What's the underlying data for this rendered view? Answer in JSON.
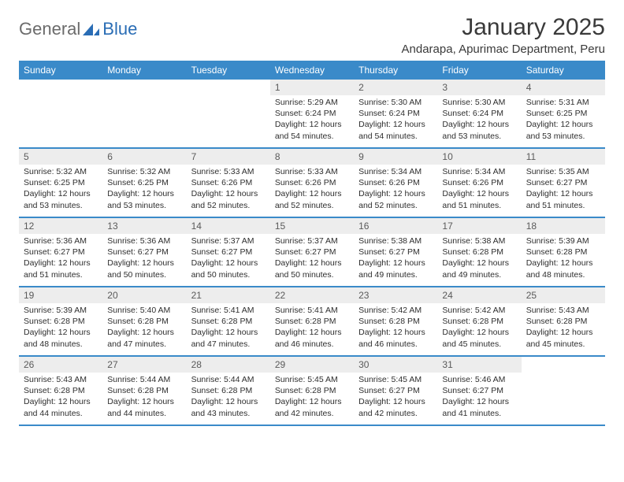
{
  "logo": {
    "general": "General",
    "blue": "Blue"
  },
  "title": "January 2025",
  "location": "Andarapa, Apurimac Department, Peru",
  "colors": {
    "header_bg": "#3a8ac9",
    "header_text": "#ffffff",
    "daynum_bg": "#ededed",
    "rule": "#3a8ac9"
  },
  "day_headers": [
    "Sunday",
    "Monday",
    "Tuesday",
    "Wednesday",
    "Thursday",
    "Friday",
    "Saturday"
  ],
  "weeks": [
    [
      {
        "n": "",
        "sr": "",
        "ss": "",
        "dl": ""
      },
      {
        "n": "",
        "sr": "",
        "ss": "",
        "dl": ""
      },
      {
        "n": "",
        "sr": "",
        "ss": "",
        "dl": ""
      },
      {
        "n": "1",
        "sr": "5:29 AM",
        "ss": "6:24 PM",
        "dl": "12 hours and 54 minutes."
      },
      {
        "n": "2",
        "sr": "5:30 AM",
        "ss": "6:24 PM",
        "dl": "12 hours and 54 minutes."
      },
      {
        "n": "3",
        "sr": "5:30 AM",
        "ss": "6:24 PM",
        "dl": "12 hours and 53 minutes."
      },
      {
        "n": "4",
        "sr": "5:31 AM",
        "ss": "6:25 PM",
        "dl": "12 hours and 53 minutes."
      }
    ],
    [
      {
        "n": "5",
        "sr": "5:32 AM",
        "ss": "6:25 PM",
        "dl": "12 hours and 53 minutes."
      },
      {
        "n": "6",
        "sr": "5:32 AM",
        "ss": "6:25 PM",
        "dl": "12 hours and 53 minutes."
      },
      {
        "n": "7",
        "sr": "5:33 AM",
        "ss": "6:26 PM",
        "dl": "12 hours and 52 minutes."
      },
      {
        "n": "8",
        "sr": "5:33 AM",
        "ss": "6:26 PM",
        "dl": "12 hours and 52 minutes."
      },
      {
        "n": "9",
        "sr": "5:34 AM",
        "ss": "6:26 PM",
        "dl": "12 hours and 52 minutes."
      },
      {
        "n": "10",
        "sr": "5:34 AM",
        "ss": "6:26 PM",
        "dl": "12 hours and 51 minutes."
      },
      {
        "n": "11",
        "sr": "5:35 AM",
        "ss": "6:27 PM",
        "dl": "12 hours and 51 minutes."
      }
    ],
    [
      {
        "n": "12",
        "sr": "5:36 AM",
        "ss": "6:27 PM",
        "dl": "12 hours and 51 minutes."
      },
      {
        "n": "13",
        "sr": "5:36 AM",
        "ss": "6:27 PM",
        "dl": "12 hours and 50 minutes."
      },
      {
        "n": "14",
        "sr": "5:37 AM",
        "ss": "6:27 PM",
        "dl": "12 hours and 50 minutes."
      },
      {
        "n": "15",
        "sr": "5:37 AM",
        "ss": "6:27 PM",
        "dl": "12 hours and 50 minutes."
      },
      {
        "n": "16",
        "sr": "5:38 AM",
        "ss": "6:27 PM",
        "dl": "12 hours and 49 minutes."
      },
      {
        "n": "17",
        "sr": "5:38 AM",
        "ss": "6:28 PM",
        "dl": "12 hours and 49 minutes."
      },
      {
        "n": "18",
        "sr": "5:39 AM",
        "ss": "6:28 PM",
        "dl": "12 hours and 48 minutes."
      }
    ],
    [
      {
        "n": "19",
        "sr": "5:39 AM",
        "ss": "6:28 PM",
        "dl": "12 hours and 48 minutes."
      },
      {
        "n": "20",
        "sr": "5:40 AM",
        "ss": "6:28 PM",
        "dl": "12 hours and 47 minutes."
      },
      {
        "n": "21",
        "sr": "5:41 AM",
        "ss": "6:28 PM",
        "dl": "12 hours and 47 minutes."
      },
      {
        "n": "22",
        "sr": "5:41 AM",
        "ss": "6:28 PM",
        "dl": "12 hours and 46 minutes."
      },
      {
        "n": "23",
        "sr": "5:42 AM",
        "ss": "6:28 PM",
        "dl": "12 hours and 46 minutes."
      },
      {
        "n": "24",
        "sr": "5:42 AM",
        "ss": "6:28 PM",
        "dl": "12 hours and 45 minutes."
      },
      {
        "n": "25",
        "sr": "5:43 AM",
        "ss": "6:28 PM",
        "dl": "12 hours and 45 minutes."
      }
    ],
    [
      {
        "n": "26",
        "sr": "5:43 AM",
        "ss": "6:28 PM",
        "dl": "12 hours and 44 minutes."
      },
      {
        "n": "27",
        "sr": "5:44 AM",
        "ss": "6:28 PM",
        "dl": "12 hours and 44 minutes."
      },
      {
        "n": "28",
        "sr": "5:44 AM",
        "ss": "6:28 PM",
        "dl": "12 hours and 43 minutes."
      },
      {
        "n": "29",
        "sr": "5:45 AM",
        "ss": "6:28 PM",
        "dl": "12 hours and 42 minutes."
      },
      {
        "n": "30",
        "sr": "5:45 AM",
        "ss": "6:27 PM",
        "dl": "12 hours and 42 minutes."
      },
      {
        "n": "31",
        "sr": "5:46 AM",
        "ss": "6:27 PM",
        "dl": "12 hours and 41 minutes."
      },
      {
        "n": "",
        "sr": "",
        "ss": "",
        "dl": ""
      }
    ]
  ],
  "labels": {
    "sunrise": "Sunrise:",
    "sunset": "Sunset:",
    "daylight": "Daylight:"
  }
}
